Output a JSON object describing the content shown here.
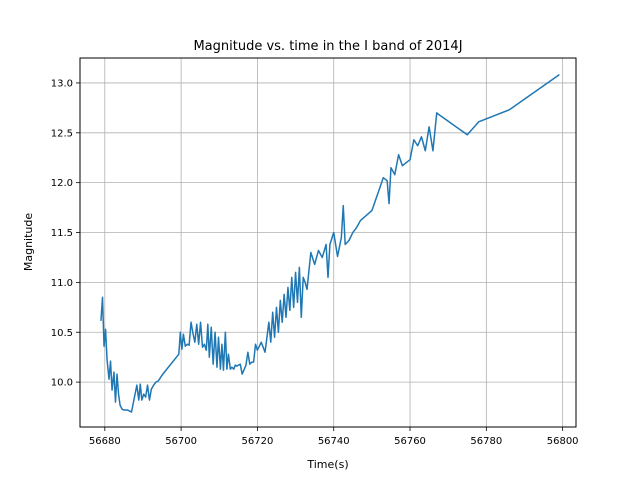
{
  "chart_data": {
    "type": "line",
    "title": "Magnitude vs. time in the I band of 2014J",
    "xlabel": "Time(s)",
    "ylabel": "Magnitude",
    "xlim": [
      56673.5,
      56803.5
    ],
    "ylim": [
      9.55,
      13.25
    ],
    "xticks": [
      56680,
      56700,
      56720,
      56740,
      56760,
      56780,
      56800
    ],
    "yticks": [
      10.0,
      10.5,
      11.0,
      11.5,
      12.0,
      12.5,
      13.0
    ],
    "xtick_labels": [
      "56680",
      "56700",
      "56720",
      "56740",
      "56760",
      "56780",
      "56800"
    ],
    "ytick_labels": [
      "10.0",
      "10.5",
      "11.0",
      "11.5",
      "12.0",
      "12.5",
      "13.0"
    ],
    "grid": true,
    "series_color": "#1f77b4",
    "series": [
      {
        "x": [
          56679.0,
          56679.4,
          56679.8,
          56680.2,
          56680.6,
          56681.1,
          56681.5,
          56681.9,
          56682.4,
          56682.8,
          56683.2,
          56683.6,
          56684.0,
          56684.5,
          56685.0,
          56686.0,
          56687.0,
          56688.4,
          56688.9,
          56689.3,
          56689.7,
          56690.2,
          56690.7,
          56691.2,
          56691.7,
          56692.2,
          56692.8,
          56693.4,
          56694.0,
          56695.0,
          56699.4,
          56699.8,
          56700.2,
          56700.6,
          56701.1,
          56701.6,
          56702.1,
          56702.6,
          56703.1,
          56703.6,
          56704.1,
          56704.6,
          56705.1,
          56705.6,
          56706.1,
          56706.6,
          56707.0,
          56707.4,
          56707.9,
          56708.4,
          56708.9,
          56709.4,
          56709.8,
          56710.3,
          56710.7,
          56711.1,
          56711.6,
          56712.0,
          56712.4,
          56712.9,
          56713.3,
          56713.8,
          56714.2,
          56714.6,
          56715.0,
          56715.5,
          56716.0,
          56717.0,
          56717.5,
          56718.0,
          56718.5,
          56719.0,
          56719.5,
          56720.0,
          56721.0,
          56722.0,
          56723.0,
          56723.5,
          56724.0,
          56724.5,
          56725.0,
          56725.5,
          56726.0,
          56726.5,
          56727.0,
          56727.5,
          56728.0,
          56728.5,
          56729.0,
          56729.5,
          56730.0,
          56730.5,
          56731.0,
          56731.5,
          56732.0,
          56732.5,
          56733.0,
          56734.0,
          56735.0,
          56736.0,
          56737.0,
          56738.0,
          56738.5,
          56739.0,
          56740.0,
          56741.0,
          56742.0,
          56742.5,
          56743.0,
          56744.0,
          56745.0,
          56746.0,
          56747.0,
          56750.0,
          56753.0,
          56754.0,
          56754.5,
          56755.0,
          56756.0,
          56757.0,
          56758.0,
          56760.0,
          56761.0,
          56762.0,
          56763.0,
          56764.0,
          56765.0,
          56766.0,
          56767.0,
          56767.3,
          56775.0,
          56778.0,
          56786.0,
          56799.0
        ],
        "y": [
          10.62,
          10.85,
          10.36,
          10.53,
          10.22,
          10.03,
          10.21,
          9.92,
          10.1,
          9.8,
          10.08,
          9.88,
          9.77,
          9.73,
          9.72,
          9.72,
          9.7,
          9.97,
          9.82,
          9.98,
          9.82,
          9.88,
          9.85,
          9.97,
          9.82,
          9.93,
          9.97,
          10.0,
          10.01,
          10.07,
          10.28,
          10.5,
          10.33,
          10.48,
          10.36,
          10.38,
          10.37,
          10.6,
          10.49,
          10.4,
          10.58,
          10.38,
          10.6,
          10.35,
          10.38,
          10.32,
          10.58,
          10.25,
          10.55,
          10.18,
          10.5,
          10.15,
          10.45,
          10.13,
          10.38,
          10.12,
          10.5,
          10.13,
          10.28,
          10.13,
          10.15,
          10.13,
          10.17,
          10.16,
          10.17,
          10.18,
          10.08,
          10.17,
          10.3,
          10.18,
          10.2,
          10.2,
          10.38,
          10.32,
          10.4,
          10.3,
          10.6,
          10.4,
          10.7,
          10.45,
          10.75,
          10.5,
          10.82,
          10.6,
          10.88,
          10.65,
          10.95,
          10.72,
          11.05,
          10.75,
          11.1,
          10.8,
          11.15,
          10.65,
          11.05,
          11.0,
          10.93,
          11.3,
          11.18,
          11.32,
          11.25,
          11.38,
          11.05,
          11.38,
          11.5,
          11.26,
          11.45,
          11.77,
          11.38,
          11.42,
          11.5,
          11.55,
          11.62,
          11.72,
          12.05,
          12.02,
          11.79,
          12.15,
          12.08,
          12.28,
          12.17,
          12.23,
          12.43,
          12.37,
          12.46,
          12.32,
          12.56,
          12.32,
          12.7,
          12.69,
          12.48,
          12.61,
          12.73,
          13.08
        ]
      }
    ]
  }
}
